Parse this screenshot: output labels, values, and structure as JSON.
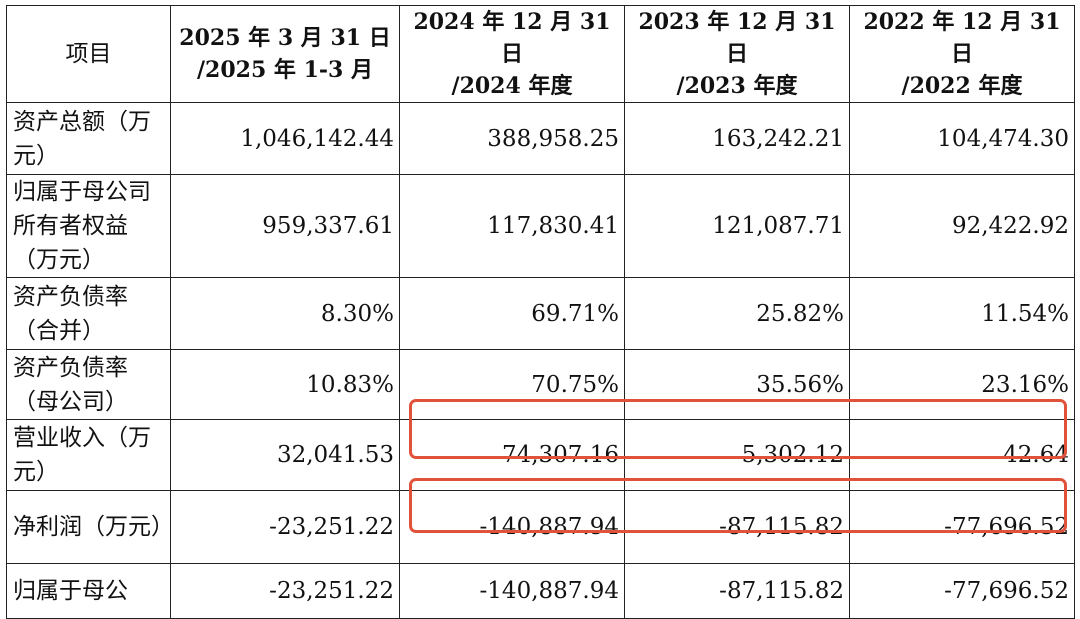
{
  "header": {
    "item": "项目",
    "columns": [
      {
        "line1": "2025 年 3 月 31 日",
        "line2": "/2025 年 1-3 月"
      },
      {
        "line1": "2024 年 12 月 31 日",
        "line2": "/2024 年度"
      },
      {
        "line1": "2023 年 12 月 31 日",
        "line2": "/2023 年度"
      },
      {
        "line1": "2022 年 12 月 31 日",
        "line2": "/2022 年度"
      }
    ]
  },
  "rows": [
    {
      "label": "资产总额（万元）",
      "values": [
        "1,046,142.44",
        "388,958.25",
        "163,242.21",
        "104,474.30"
      ]
    },
    {
      "label": "归属于母公司所有者权益（万元）",
      "values": [
        "959,337.61",
        "117,830.41",
        "121,087.71",
        "92,422.92"
      ]
    },
    {
      "label": "资产负债率（合并）",
      "values": [
        "8.30%",
        "69.71%",
        "25.82%",
        "11.54%"
      ]
    },
    {
      "label": "资产负债率（母公司）",
      "values": [
        "10.83%",
        "70.75%",
        "35.56%",
        "23.16%"
      ]
    },
    {
      "label": "营业收入（万元）",
      "values": [
        "32,041.53",
        "74,307.16",
        "5,302.12",
        "42.64"
      ]
    },
    {
      "label": "净利润（万元）",
      "values": [
        "-23,251.22",
        "-140,887.94",
        "-87,115.82",
        "-77,696.52"
      ]
    },
    {
      "label": "归属于母公",
      "values": [
        "-23,251.22",
        "-140,887.94",
        "-87,115.82",
        "-77,696.52"
      ]
    }
  ],
  "highlight_color": "#e0533a"
}
